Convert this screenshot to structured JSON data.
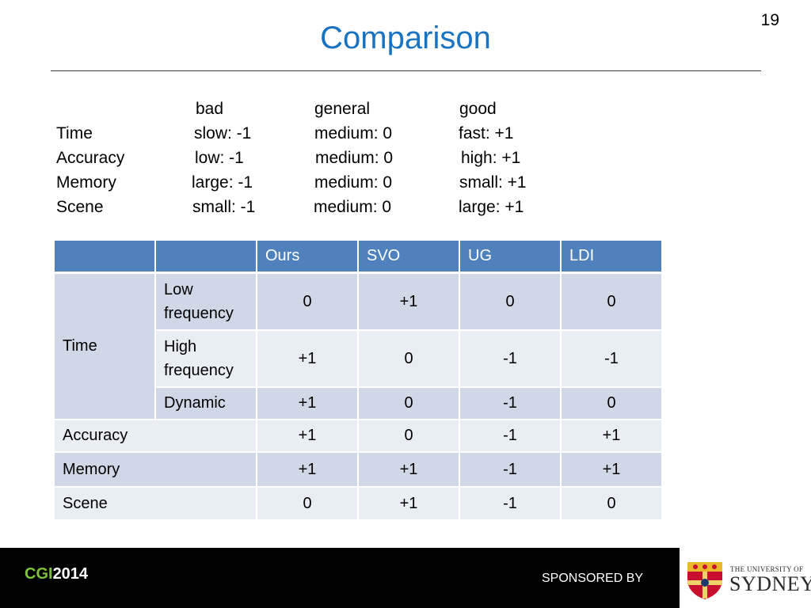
{
  "slide": {
    "title": "Comparison",
    "page_number": "19"
  },
  "legend": {
    "headers": [
      "bad",
      "general",
      "good"
    ],
    "rows": [
      {
        "label": "Time",
        "bad": "slow: -1",
        "general": "medium: 0",
        "good": "fast: +1"
      },
      {
        "label": "Accuracy",
        "bad": "low: -1",
        "general": "medium: 0",
        "good": "high: +1"
      },
      {
        "label": "Memory",
        "bad": "large: -1",
        "general": "medium: 0",
        "good": "small: +1"
      },
      {
        "label": "Scene",
        "bad": "small: -1",
        "general": "medium: 0",
        "good": "large: +1"
      }
    ]
  },
  "table": {
    "columns": [
      "",
      "",
      "Ours",
      "SVO",
      "UG",
      "LDI"
    ],
    "time_label": "Time",
    "rows": [
      {
        "label": "Low frequency",
        "values": [
          "0",
          "+1",
          "0",
          "0"
        ]
      },
      {
        "label": "High frequency",
        "values": [
          "+1",
          "0",
          "-1",
          "-1"
        ]
      },
      {
        "label": "Dynamic",
        "values": [
          "+1",
          "0",
          "-1",
          "0"
        ]
      },
      {
        "label": "Accuracy",
        "values": [
          "+1",
          "0",
          "-1",
          "+1"
        ]
      },
      {
        "label": "Memory",
        "values": [
          "+1",
          "+1",
          "-1",
          "+1"
        ]
      },
      {
        "label": "Scene",
        "values": [
          "0",
          "+1",
          "-1",
          "0"
        ]
      }
    ]
  },
  "footer": {
    "logo_cgi": "CGI",
    "logo_year": "2014",
    "sponsored_by": "SPONSORED BY",
    "sponsor_small": "THE UNIVERSITY OF",
    "sponsor_big": "SYDNEY"
  },
  "colors": {
    "title": "#1a73c0",
    "table_header": "#4f81bd",
    "row_dark": "#d0d8e8",
    "row_light": "#e9edf4",
    "cgi_green": "#7ec13f"
  }
}
